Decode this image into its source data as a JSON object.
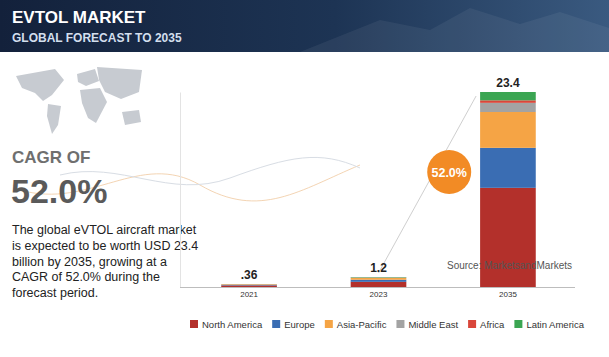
{
  "header": {
    "title": "EVTOL MARKET",
    "subtitle": "GLOBAL FORECAST TO 2035"
  },
  "summary": {
    "label": "CAGR OF",
    "value": "52.0%",
    "text": "The global eVTOL aircraft market is expected to be worth USD 23.4 billion by 2035, growing at a CAGR of 52.0% during the forecast period."
  },
  "chart_data": {
    "type": "bar",
    "stacked": true,
    "tick_labels": "x",
    "categories": [
      "2021",
      "2023",
      "2035"
    ],
    "series": [
      {
        "name": "North America",
        "color": "#b3302b",
        "values": [
          0.19,
          0.62,
          11.9
        ]
      },
      {
        "name": "Europe",
        "color": "#3a6db3",
        "values": [
          0.07,
          0.25,
          4.8
        ]
      },
      {
        "name": "Asia-Pacific",
        "color": "#f5a445",
        "values": [
          0.07,
          0.22,
          4.3
        ]
      },
      {
        "name": "Middle East",
        "color": "#a3a3a3",
        "values": [
          0.015,
          0.05,
          1.1
        ]
      },
      {
        "name": "Africa",
        "color": "#d9463a",
        "values": [
          0.005,
          0.01,
          0.3
        ]
      },
      {
        "name": "Latin America",
        "color": "#3ba552",
        "values": [
          0.01,
          0.05,
          1.0
        ]
      }
    ],
    "totals": [
      0.36,
      1.2,
      23.4
    ],
    "total_labels": [
      ".36",
      "1.2",
      "23.4"
    ],
    "annotation": "52.0%",
    "source": "Source: MarketsandMarkets",
    "ylim": [
      0,
      23.4
    ],
    "yticks": []
  }
}
